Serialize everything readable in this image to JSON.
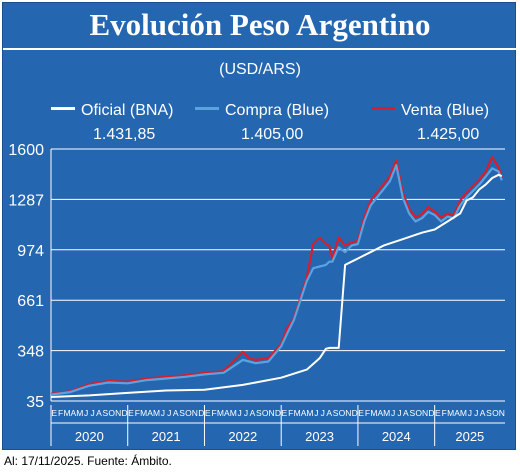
{
  "header": {
    "title": "Evolución Peso Argentino"
  },
  "chart_data": {
    "type": "line",
    "title": "Evolución Peso Argentino",
    "subtitle": "(USD/ARS)",
    "y_ticks": [
      35,
      348,
      661,
      974,
      1287,
      1600
    ],
    "ylim": [
      35,
      1600
    ],
    "grid": true,
    "legend_placement": "top",
    "month_letters": [
      "E",
      "F",
      "M",
      "A",
      "M",
      "J",
      "J",
      "A",
      "S",
      "O",
      "N",
      "D"
    ],
    "last_month_letters": [
      "E",
      "F",
      "M",
      "A",
      "M",
      "J",
      "J",
      "A",
      "S",
      "O",
      "N"
    ],
    "years": [
      "2020",
      "2021",
      "2022",
      "2023",
      "2024",
      "2025"
    ],
    "x_unit": "months since Jan 2020",
    "series": [
      {
        "name": "Oficial (BNA)",
        "legend_value": "1.431,85",
        "color": "#ffffff",
        "x": [
          0,
          6,
          12,
          18,
          24,
          30,
          36,
          40,
          42,
          43,
          43.6,
          45,
          46,
          47,
          48,
          52,
          55,
          58,
          60,
          62,
          64,
          65,
          66,
          67,
          68,
          69,
          70,
          70.5
        ],
        "y": [
          60,
          70,
          85,
          100,
          105,
          135,
          180,
          230,
          300,
          360,
          365,
          365,
          880,
          900,
          920,
          1000,
          1040,
          1080,
          1100,
          1150,
          1200,
          1280,
          1300,
          1350,
          1380,
          1420,
          1440,
          1432
        ]
      },
      {
        "name": "Compra (Blue)",
        "legend_value": "1.405,00",
        "color": "#5aa3e0",
        "x": [
          0,
          3,
          6,
          9,
          12,
          15,
          18,
          21,
          24,
          27,
          30,
          31,
          32,
          34,
          36,
          37,
          38,
          40,
          41,
          42,
          43,
          43.5,
          44,
          45,
          46,
          47,
          48,
          49,
          50,
          51,
          52,
          53,
          54,
          55,
          56,
          57,
          58,
          59,
          60,
          61,
          62,
          63,
          64,
          65,
          66,
          67,
          68,
          69,
          70,
          70.5
        ],
        "y": [
          75,
          90,
          130,
          150,
          145,
          165,
          175,
          185,
          200,
          210,
          290,
          280,
          270,
          280,
          375,
          460,
          540,
          780,
          860,
          870,
          880,
          900,
          900,
          990,
          960,
          1000,
          1010,
          1150,
          1250,
          1300,
          1350,
          1400,
          1500,
          1300,
          1200,
          1150,
          1170,
          1210,
          1190,
          1150,
          1180,
          1170,
          1250,
          1300,
          1340,
          1380,
          1430,
          1480,
          1460,
          1405
        ]
      },
      {
        "name": "Venta (Blue)",
        "legend_value": "1.425,00",
        "color": "#d81e2c",
        "x": [
          0,
          3,
          6,
          9,
          12,
          15,
          18,
          21,
          24,
          27,
          30,
          31,
          32,
          34,
          36,
          37,
          38,
          40,
          41,
          42,
          43,
          43.5,
          44,
          45,
          46,
          47,
          48,
          49,
          50,
          51,
          52,
          53,
          54,
          55,
          56,
          57,
          58,
          59,
          60,
          61,
          62,
          63,
          64,
          65,
          66,
          67,
          68,
          69,
          70,
          70.5
        ],
        "y": [
          80,
          95,
          140,
          160,
          155,
          175,
          185,
          195,
          210,
          220,
          340,
          300,
          290,
          300,
          390,
          490,
          550,
          800,
          1010,
          1050,
          1010,
          1000,
          920,
          1050,
          1000,
          1020,
          1030,
          1175,
          1280,
          1330,
          1380,
          1430,
          1530,
          1330,
          1230,
          1175,
          1195,
          1240,
          1210,
          1175,
          1200,
          1190,
          1280,
          1330,
          1370,
          1410,
          1460,
          1550,
          1485,
          1425
        ]
      }
    ]
  },
  "footer": {
    "note": "Al: 17/11/2025. Fuente: Ámbito."
  }
}
